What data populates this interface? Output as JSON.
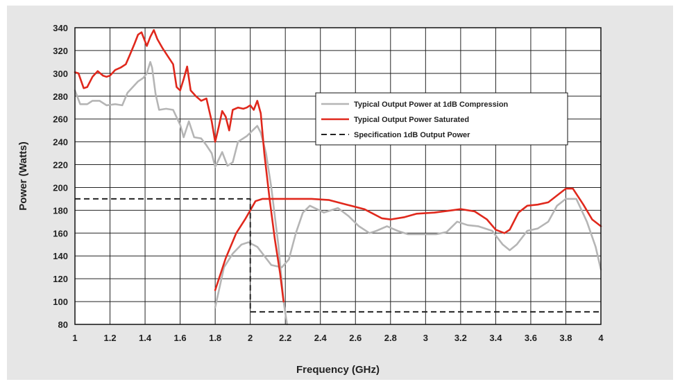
{
  "chart_data": {
    "type": "line",
    "title": "",
    "xlabel": "Frequency (GHz)",
    "ylabel": "Power (Watts)",
    "xlim": [
      1,
      4
    ],
    "ylim": [
      80,
      340
    ],
    "xticks": [
      "1",
      "1.2",
      "1.4",
      "1.6",
      "1.8",
      "2",
      "2.2",
      "2.4",
      "2.6",
      "2.8",
      "3",
      "3.2",
      "3.4",
      "3.6",
      "3.8",
      "4"
    ],
    "yticks": [
      "80",
      "100",
      "120",
      "140",
      "160",
      "180",
      "200",
      "220",
      "240",
      "260",
      "280",
      "300",
      "320",
      "340"
    ],
    "grid": true,
    "legend_position": "right",
    "series": [
      {
        "name": "Typical Output Power at 1dB Compression",
        "color": "#b5b5b5",
        "style": "solid",
        "segments": [
          [
            [
              1.0,
              285
            ],
            [
              1.03,
              273
            ],
            [
              1.07,
              273
            ],
            [
              1.1,
              276
            ],
            [
              1.14,
              276
            ],
            [
              1.18,
              272
            ],
            [
              1.23,
              273
            ],
            [
              1.27,
              272
            ],
            [
              1.3,
              283
            ],
            [
              1.36,
              293
            ],
            [
              1.39,
              296
            ],
            [
              1.41,
              300
            ],
            [
              1.43,
              310
            ],
            [
              1.44,
              305
            ],
            [
              1.46,
              282
            ],
            [
              1.48,
              268
            ],
            [
              1.52,
              269
            ],
            [
              1.56,
              268
            ],
            [
              1.6,
              255
            ],
            [
              1.62,
              244
            ],
            [
              1.65,
              258
            ],
            [
              1.68,
              244
            ],
            [
              1.72,
              243
            ],
            [
              1.75,
              237
            ],
            [
              1.78,
              230
            ],
            [
              1.8,
              218
            ],
            [
              1.84,
              231
            ],
            [
              1.87,
              219
            ],
            [
              1.9,
              222
            ],
            [
              1.93,
              240
            ],
            [
              1.98,
              245
            ],
            [
              2.0,
              248
            ],
            [
              2.04,
              254
            ],
            [
              2.06,
              248
            ],
            [
              2.09,
              230
            ],
            [
              2.12,
              200
            ],
            [
              2.16,
              150
            ],
            [
              2.19,
              100
            ],
            [
              2.21,
              80
            ]
          ],
          [
            [
              1.8,
              95
            ],
            [
              1.85,
              130
            ],
            [
              1.9,
              142
            ],
            [
              1.95,
              150
            ],
            [
              1.99,
              152
            ],
            [
              2.04,
              148
            ],
            [
              2.08,
              140
            ],
            [
              2.12,
              132
            ],
            [
              2.18,
              130
            ],
            [
              2.22,
              137
            ],
            [
              2.26,
              160
            ],
            [
              2.3,
              178
            ],
            [
              2.34,
              184
            ],
            [
              2.38,
              181
            ],
            [
              2.42,
              178
            ],
            [
              2.46,
              180
            ],
            [
              2.5,
              182
            ],
            [
              2.56,
              175
            ],
            [
              2.62,
              166
            ],
            [
              2.68,
              160
            ],
            [
              2.72,
              162
            ],
            [
              2.78,
              166
            ],
            [
              2.84,
              162
            ],
            [
              2.9,
              159
            ],
            [
              2.98,
              159
            ],
            [
              3.06,
              159
            ],
            [
              3.12,
              161
            ],
            [
              3.18,
              170
            ],
            [
              3.24,
              167
            ],
            [
              3.3,
              166
            ],
            [
              3.38,
              162
            ],
            [
              3.44,
              150
            ],
            [
              3.48,
              145
            ],
            [
              3.52,
              150
            ],
            [
              3.58,
              162
            ],
            [
              3.64,
              164
            ],
            [
              3.7,
              170
            ],
            [
              3.75,
              184
            ],
            [
              3.8,
              190
            ],
            [
              3.86,
              190
            ],
            [
              3.92,
              170
            ],
            [
              3.97,
              148
            ],
            [
              4.0,
              128
            ]
          ]
        ]
      },
      {
        "name": "Typical Output Power Saturated",
        "color": "#e0281c",
        "style": "solid",
        "segments": [
          [
            [
              1.0,
              301
            ],
            [
              1.02,
              300
            ],
            [
              1.05,
              287
            ],
            [
              1.07,
              288
            ],
            [
              1.1,
              297
            ],
            [
              1.13,
              302
            ],
            [
              1.16,
              298
            ],
            [
              1.18,
              297
            ],
            [
              1.2,
              298
            ],
            [
              1.23,
              303
            ],
            [
              1.26,
              305
            ],
            [
              1.29,
              308
            ],
            [
              1.31,
              315
            ],
            [
              1.34,
              326
            ],
            [
              1.36,
              334
            ],
            [
              1.38,
              336
            ],
            [
              1.41,
              324
            ],
            [
              1.43,
              332
            ],
            [
              1.45,
              338
            ],
            [
              1.47,
              330
            ],
            [
              1.5,
              322
            ],
            [
              1.53,
              315
            ],
            [
              1.56,
              308
            ],
            [
              1.58,
              288
            ],
            [
              1.6,
              285
            ],
            [
              1.62,
              295
            ],
            [
              1.64,
              306
            ],
            [
              1.66,
              285
            ],
            [
              1.69,
              280
            ],
            [
              1.72,
              276
            ],
            [
              1.75,
              278
            ],
            [
              1.78,
              258
            ],
            [
              1.8,
              240
            ],
            [
              1.82,
              253
            ],
            [
              1.84,
              267
            ],
            [
              1.86,
              262
            ],
            [
              1.88,
              250
            ],
            [
              1.9,
              268
            ],
            [
              1.93,
              270
            ],
            [
              1.96,
              269
            ],
            [
              1.98,
              270
            ],
            [
              2.0,
              272
            ],
            [
              2.02,
              268
            ],
            [
              2.04,
              276
            ],
            [
              2.06,
              265
            ],
            [
              2.08,
              230
            ],
            [
              2.11,
              190
            ],
            [
              2.14,
              155
            ],
            [
              2.17,
              125
            ],
            [
              2.19,
              100
            ]
          ],
          [
            [
              1.8,
              110
            ],
            [
              1.86,
              138
            ],
            [
              1.92,
              160
            ],
            [
              1.97,
              172
            ],
            [
              2.0,
              180
            ],
            [
              2.03,
              188
            ],
            [
              2.07,
              190
            ],
            [
              2.15,
              190
            ],
            [
              2.25,
              190
            ],
            [
              2.35,
              190
            ],
            [
              2.45,
              189
            ],
            [
              2.55,
              185
            ],
            [
              2.65,
              181
            ],
            [
              2.75,
              173
            ],
            [
              2.8,
              172
            ],
            [
              2.88,
              174
            ],
            [
              2.95,
              177
            ],
            [
              3.05,
              178
            ],
            [
              3.15,
              180
            ],
            [
              3.2,
              181
            ],
            [
              3.28,
              179
            ],
            [
              3.35,
              172
            ],
            [
              3.4,
              163
            ],
            [
              3.45,
              160
            ],
            [
              3.48,
              163
            ],
            [
              3.53,
              178
            ],
            [
              3.58,
              184
            ],
            [
              3.64,
              185
            ],
            [
              3.7,
              187
            ],
            [
              3.75,
              193
            ],
            [
              3.8,
              199
            ],
            [
              3.84,
              199
            ],
            [
              3.9,
              185
            ],
            [
              3.95,
              172
            ],
            [
              4.0,
              166
            ]
          ]
        ]
      },
      {
        "name": "Specification 1dB Output Power",
        "color": "#222222",
        "style": "dashed",
        "segments": [
          [
            [
              1.0,
              190
            ],
            [
              2.0,
              190
            ],
            [
              2.0,
              91
            ],
            [
              4.0,
              91
            ]
          ]
        ]
      }
    ]
  }
}
